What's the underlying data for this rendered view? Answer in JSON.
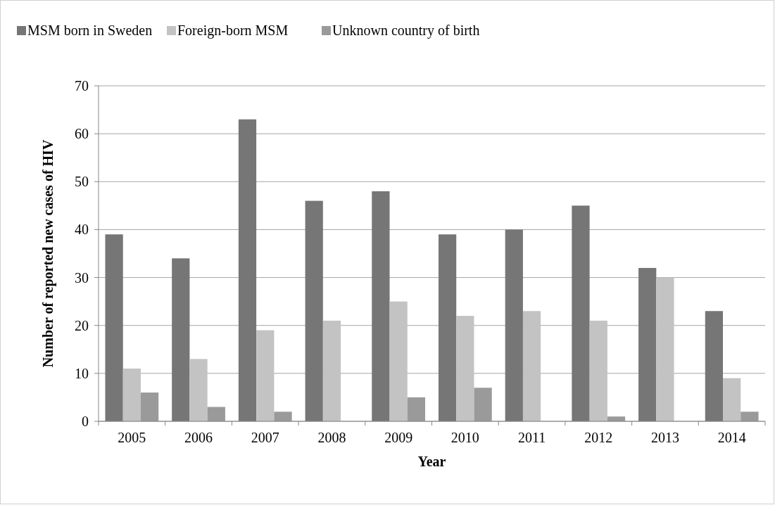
{
  "chart_data": {
    "type": "bar",
    "xlabel": "Year",
    "ylabel": "Number of reported new cases of HIV",
    "categories": [
      "2005",
      "2006",
      "2007",
      "2008",
      "2009",
      "2010",
      "2011",
      "2012",
      "2013",
      "2014"
    ],
    "series": [
      {
        "name": "MSM born in Sweden",
        "color": "#767676",
        "values": [
          39,
          34,
          63,
          46,
          48,
          39,
          40,
          45,
          32,
          23
        ]
      },
      {
        "name": "Foreign-born MSM",
        "color": "#c3c3c3",
        "values": [
          11,
          13,
          19,
          21,
          25,
          22,
          23,
          21,
          30,
          9
        ]
      },
      {
        "name": "Unknown country of birth",
        "color": "#9a9a9a",
        "values": [
          6,
          3,
          2,
          0,
          5,
          7,
          0,
          1,
          0,
          2
        ]
      }
    ],
    "ylim": [
      0,
      70
    ],
    "yticks": [
      0,
      10,
      20,
      30,
      40,
      50,
      60,
      70
    ],
    "grid": "y",
    "legend": "top"
  }
}
